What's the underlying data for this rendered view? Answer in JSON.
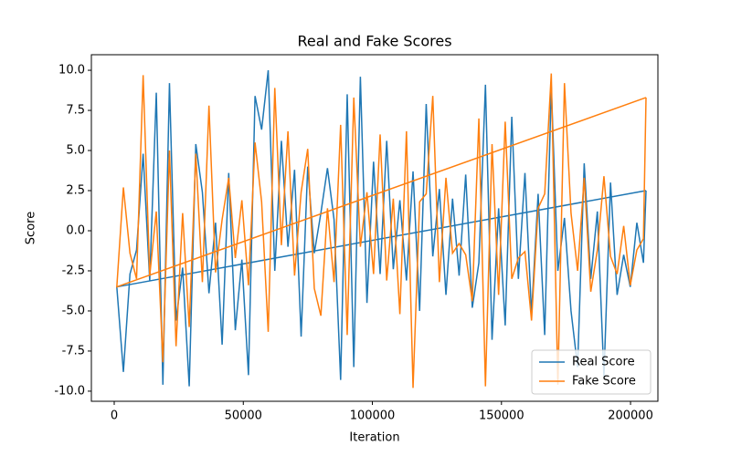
{
  "chart_data": {
    "type": "line",
    "title": "Real and Fake Scores",
    "xlabel": "Iteration",
    "ylabel": "Score",
    "x": [
      206000,
      1000,
      3550,
      6100,
      8650,
      11200,
      13750,
      16300,
      18850,
      21400,
      23950,
      26500,
      29050,
      31600,
      34150,
      36700,
      39250,
      41800,
      44350,
      46900,
      49450,
      52000,
      54550,
      57100,
      59650,
      62200,
      64750,
      67300,
      69850,
      72400,
      74950,
      77500,
      80050,
      82600,
      85150,
      87700,
      90250,
      92800,
      95350,
      97900,
      100450,
      103000,
      105550,
      108100,
      110650,
      113200,
      115750,
      118300,
      120850,
      123400,
      125950,
      128500,
      131050,
      133600,
      136150,
      138700,
      141250,
      143800,
      146350,
      148900,
      151450,
      154000,
      156550,
      159100,
      161650,
      164200,
      166750,
      169300,
      171850,
      174400,
      176950,
      179500,
      182050,
      184600,
      187150,
      189700,
      192250,
      194800,
      197350,
      199900,
      202450,
      205000,
      206000
    ],
    "series": [
      {
        "name": "Real Score",
        "color": "#1f77b4",
        "values": [
          2.5,
          -3.5,
          -8.8,
          -2.7,
          -1.2,
          4.8,
          -3.1,
          8.6,
          -9.6,
          9.2,
          -5.6,
          -2.3,
          -9.7,
          5.4,
          2.4,
          -3.9,
          0.5,
          -7.1,
          3.6,
          -6.2,
          -1.8,
          -9.0,
          8.4,
          6.3,
          10.0,
          -2.5,
          5.6,
          -1.0,
          3.8,
          -6.6,
          4.0,
          -1.4,
          1.1,
          3.9,
          0.7,
          -9.3,
          8.5,
          -8.5,
          9.6,
          -4.5,
          4.3,
          -2.7,
          5.6,
          -2.4,
          1.9,
          -3.1,
          3.7,
          -5.0,
          7.9,
          -1.6,
          2.6,
          -4.0,
          2.0,
          -2.8,
          3.5,
          -4.8,
          -2.0,
          9.1,
          -6.8,
          1.4,
          -5.9,
          7.1,
          -3.0,
          3.6,
          -5.2,
          2.3,
          -6.5,
          9.0,
          -2.5,
          0.8,
          -5.0,
          -8.5,
          4.2,
          -3.0,
          1.2,
          -9.1,
          3.0,
          -4.0,
          -1.5,
          -3.5,
          0.5,
          -2.0,
          2.5
        ]
      },
      {
        "name": "Fake Score",
        "color": "#ff7f0e",
        "values": [
          8.3,
          -3.5,
          2.7,
          -1.4,
          -3.0,
          9.7,
          -2.8,
          1.2,
          -8.2,
          5.0,
          -7.2,
          1.1,
          -6.0,
          4.8,
          -3.2,
          7.8,
          -2.6,
          0.7,
          3.3,
          -1.7,
          1.9,
          -3.4,
          5.5,
          1.8,
          -6.3,
          8.9,
          -0.9,
          6.2,
          -2.8,
          2.4,
          5.1,
          -3.6,
          -5.3,
          1.4,
          -3.2,
          6.6,
          -6.5,
          8.3,
          -1.0,
          2.4,
          -2.7,
          6.0,
          -3.1,
          2.0,
          -5.2,
          6.2,
          -9.8,
          1.8,
          2.3,
          8.4,
          -3.2,
          3.3,
          -1.4,
          -0.8,
          -1.5,
          -4.4,
          7.0,
          -9.7,
          5.4,
          -4.0,
          6.8,
          -3.0,
          -1.7,
          -1.3,
          -5.6,
          1.4,
          2.3,
          9.8,
          -9.6,
          9.2,
          1.1,
          -2.5,
          3.3,
          -3.8,
          -1.2,
          3.4,
          -1.6,
          -2.7,
          0.3,
          -3.4,
          -1.2,
          -0.5,
          8.3
        ]
      }
    ],
    "xlim": [
      -8850,
      210600
    ],
    "ylim": [
      -10.63,
      10.97
    ],
    "xticks": [
      0,
      50000,
      100000,
      150000,
      200000
    ],
    "yticks": [
      {
        "value": -10,
        "label": "-10.0"
      },
      -7.5,
      {
        "value": -5,
        "label": "-5.0"
      },
      -2.5,
      {
        "value": 0,
        "label": "0.0"
      },
      2.5,
      {
        "value": 5,
        "label": "5.0"
      },
      7.5,
      {
        "value": 10,
        "label": "10.0"
      }
    ],
    "legend": "lower right"
  }
}
